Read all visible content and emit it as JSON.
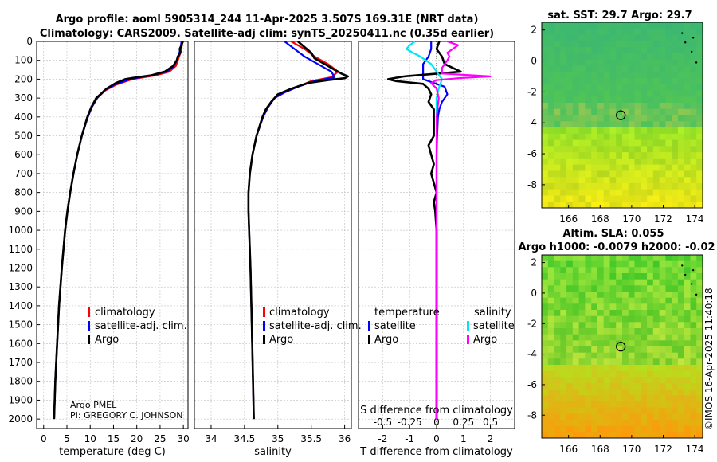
{
  "header": {
    "line1": "Argo profile: aoml 5905314_244 11-Apr-2025 3.507S 169.31E (NRT data)",
    "line2": "Climatology: CARS2009. Satellite-adj clim: synTS_20250411.nc (0.35d earlier)"
  },
  "credit": {
    "line1": "Argo PMEL",
    "line2": "PI: GREGORY C. JOHNSON",
    "watermark": "©IMOS 16-Apr-2025 11:40:18"
  },
  "colors": {
    "climatology": "#ff0000",
    "satellite": "#0000ff",
    "argo": "#000000",
    "sat_temp_diff": "#0000ff",
    "sat_sal_diff": "#00e5ee",
    "argo_sal_diff": "#ff00ff"
  },
  "chart_data": [
    {
      "type": "line",
      "id": "temperature",
      "xlabel": "temperature (deg C)",
      "ylabel": "",
      "xlim": [
        -1.5,
        31
      ],
      "ylim": [
        2050,
        0
      ],
      "xticks": [
        0,
        5,
        10,
        15,
        20,
        25,
        30
      ],
      "yticks": [
        0,
        100,
        200,
        300,
        400,
        500,
        600,
        700,
        800,
        900,
        1000,
        1100,
        1200,
        1300,
        1400,
        1500,
        1600,
        1700,
        1800,
        1900,
        2000
      ],
      "grid": true,
      "legend": [
        "climatology",
        "satellite-adj. clim.",
        "Argo"
      ],
      "series": [
        {
          "name": "climatology",
          "depth": [
            0,
            40,
            80,
            130,
            160,
            180,
            200,
            230,
            260,
            300,
            350,
            400,
            500,
            600,
            700,
            800,
            900,
            1000,
            1200,
            1400,
            1600,
            1800,
            2000
          ],
          "values": [
            29.8,
            29.6,
            29.1,
            28.4,
            27.0,
            24.0,
            19.0,
            15.5,
            13.2,
            11.5,
            10.3,
            9.5,
            8.2,
            7.2,
            6.4,
            5.7,
            5.1,
            4.6,
            3.9,
            3.3,
            2.9,
            2.5,
            2.25
          ]
        },
        {
          "name": "satellite-adj. clim.",
          "depth": [
            0,
            40,
            80,
            130,
            160,
            180,
            200,
            230,
            260,
            300,
            350,
            400,
            500,
            600,
            700,
            800,
            900,
            1000,
            1200,
            1400,
            1600,
            1800,
            2000
          ],
          "values": [
            29.6,
            29.4,
            28.9,
            28.0,
            26.5,
            23.0,
            18.5,
            15.2,
            13.0,
            11.5,
            10.3,
            9.5,
            8.2,
            7.2,
            6.4,
            5.7,
            5.1,
            4.6,
            3.9,
            3.3,
            2.9,
            2.5,
            2.25
          ]
        },
        {
          "name": "Argo",
          "depth": [
            0,
            20,
            40,
            60,
            80,
            100,
            130,
            160,
            180,
            190,
            200,
            220,
            250,
            280,
            300,
            350,
            400,
            500,
            600,
            700,
            800,
            900,
            1000,
            1200,
            1400,
            1600,
            1800,
            2000
          ],
          "values": [
            29.9,
            29.6,
            29.2,
            29.4,
            28.8,
            28.6,
            27.8,
            26.0,
            23.0,
            20.0,
            17.5,
            15.5,
            13.5,
            12.2,
            11.3,
            10.2,
            9.4,
            8.2,
            7.2,
            6.4,
            5.7,
            5.1,
            4.6,
            3.9,
            3.3,
            2.9,
            2.5,
            2.25
          ]
        }
      ]
    },
    {
      "type": "line",
      "id": "salinity",
      "xlabel": "salinity",
      "xlim": [
        33.75,
        36.1
      ],
      "ylim": [
        2050,
        0
      ],
      "xticks": [
        34,
        34.5,
        35,
        35.5,
        36
      ],
      "grid": true,
      "legend": [
        "climatology",
        "satellite-adj. clim.",
        "Argo"
      ],
      "series": [
        {
          "name": "climatology",
          "depth": [
            0,
            40,
            80,
            120,
            160,
            190,
            210,
            240,
            270,
            300,
            350,
            400,
            500,
            600,
            700,
            800,
            900,
            1000,
            1200,
            1500,
            2000
          ],
          "values": [
            35.2,
            35.4,
            35.55,
            35.75,
            35.9,
            35.8,
            35.5,
            35.3,
            35.1,
            34.95,
            34.85,
            34.78,
            34.68,
            34.62,
            34.58,
            34.56,
            34.56,
            34.57,
            34.59,
            34.61,
            34.64
          ]
        },
        {
          "name": "satellite-adj. clim.",
          "depth": [
            0,
            40,
            80,
            120,
            160,
            190,
            210,
            240,
            270,
            300,
            350,
            400,
            500,
            600,
            700,
            800,
            900,
            1000,
            1200,
            1500,
            2000
          ],
          "values": [
            35.1,
            35.25,
            35.4,
            35.6,
            35.8,
            35.85,
            35.55,
            35.3,
            35.1,
            34.95,
            34.85,
            34.78,
            34.68,
            34.62,
            34.58,
            34.56,
            34.56,
            34.57,
            34.59,
            34.61,
            34.64
          ]
        },
        {
          "name": "Argo",
          "depth": [
            0,
            30,
            60,
            90,
            120,
            150,
            170,
            185,
            195,
            205,
            220,
            250,
            280,
            320,
            360,
            400,
            500,
            600,
            700,
            800,
            900,
            1000,
            1200,
            1500,
            2000
          ],
          "values": [
            35.3,
            35.4,
            35.5,
            35.55,
            35.7,
            35.85,
            35.95,
            36.05,
            36.0,
            35.75,
            35.45,
            35.2,
            35.0,
            34.9,
            34.82,
            34.77,
            34.68,
            34.62,
            34.58,
            34.56,
            34.56,
            34.57,
            34.59,
            34.61,
            34.64
          ]
        }
      ]
    },
    {
      "type": "line",
      "id": "difference",
      "xlabel": "T difference from climatology",
      "x2label": "S difference from climatology",
      "xlim": [
        -2.9,
        2.9
      ],
      "ylim": [
        2050,
        0
      ],
      "xticks": [
        -2,
        -1,
        0,
        1,
        2
      ],
      "x2ticks": [
        -0.5,
        -0.25,
        0,
        0.25,
        0.5
      ],
      "x2tick_labels": [
        "-0.5",
        "-0.25",
        "0",
        "0.25",
        "0.5"
      ],
      "grid": true,
      "legend_temperature_title": "temperature",
      "legend_salinity_title": "salinity",
      "legend": [
        "satellite",
        "Argo",
        "satellite",
        "Argo"
      ],
      "series": [
        {
          "name": "temperature satellite",
          "depth": [
            0,
            40,
            80,
            120,
            160,
            200,
            240,
            280,
            320,
            360,
            400,
            500,
            600,
            800,
            1000,
            1500,
            2000
          ],
          "values": [
            -0.2,
            -0.2,
            -0.3,
            -0.5,
            -0.5,
            -0.5,
            0.3,
            0.4,
            0.2,
            0.1,
            0.05,
            0.02,
            0.0,
            0.0,
            0.0,
            0.0,
            0.0
          ]
        },
        {
          "name": "temperature Argo",
          "depth": [
            0,
            40,
            80,
            120,
            160,
            185,
            200,
            210,
            225,
            250,
            280,
            320,
            360,
            400,
            500,
            550,
            600,
            650,
            700,
            750,
            800,
            850,
            900,
            1000,
            1200,
            1500,
            2000
          ],
          "values": [
            0.1,
            0.0,
            0.2,
            0.3,
            0.9,
            -1.2,
            -1.8,
            -1.5,
            -0.5,
            -0.3,
            -0.2,
            -0.3,
            -0.1,
            -0.1,
            -0.1,
            -0.3,
            -0.2,
            -0.1,
            -0.2,
            -0.1,
            0.0,
            -0.1,
            -0.05,
            0.0,
            0.0,
            0.0,
            0.0
          ]
        },
        {
          "name": "salinity satellite",
          "depth": [
            0,
            20,
            40,
            60,
            80,
            120,
            160,
            200,
            250,
            300,
            400,
            600,
            1000,
            1500,
            2000
          ],
          "values": [
            -0.2,
            -0.25,
            -0.28,
            -0.22,
            -0.15,
            -0.05,
            0.0,
            0.05,
            0.02,
            0.0,
            0.0,
            0.0,
            0.0,
            0.0,
            0.0
          ]
        },
        {
          "name": "salinity Argo",
          "depth": [
            0,
            20,
            40,
            60,
            80,
            100,
            140,
            170,
            185,
            195,
            205,
            220,
            250,
            300,
            400,
            600,
            800,
            1000,
            1500,
            2000
          ],
          "values": [
            0.1,
            0.2,
            0.15,
            0.1,
            0.12,
            0.1,
            0.05,
            0.05,
            0.5,
            0.2,
            0.0,
            -0.05,
            0.0,
            0.02,
            0.0,
            0.0,
            0.0,
            0.0,
            0.0,
            0.0
          ]
        }
      ]
    },
    {
      "type": "heatmap",
      "id": "sst_map",
      "title": "sat. SST: 29.7 Argo: 29.7",
      "xlim": [
        164.3,
        174.5
      ],
      "ylim": [
        -9.5,
        2.5
      ],
      "xticks": [
        166,
        168,
        170,
        172,
        174
      ],
      "yticks": [
        2,
        0,
        -2,
        -4,
        -6,
        -8
      ],
      "marker": {
        "lon": 169.31,
        "lat": -3.507
      }
    },
    {
      "type": "heatmap",
      "id": "sla_map",
      "title": "Altim. SLA: 0.055",
      "subtitle": "Argo h1000: -0.0079 h2000: -0.02",
      "xlim": [
        164.3,
        174.5
      ],
      "ylim": [
        -9.5,
        2.5
      ],
      "xticks": [
        166,
        168,
        170,
        172,
        174
      ],
      "yticks": [
        2,
        0,
        -2,
        -4,
        -6,
        -8
      ],
      "marker": {
        "lon": 169.31,
        "lat": -3.507
      }
    }
  ]
}
